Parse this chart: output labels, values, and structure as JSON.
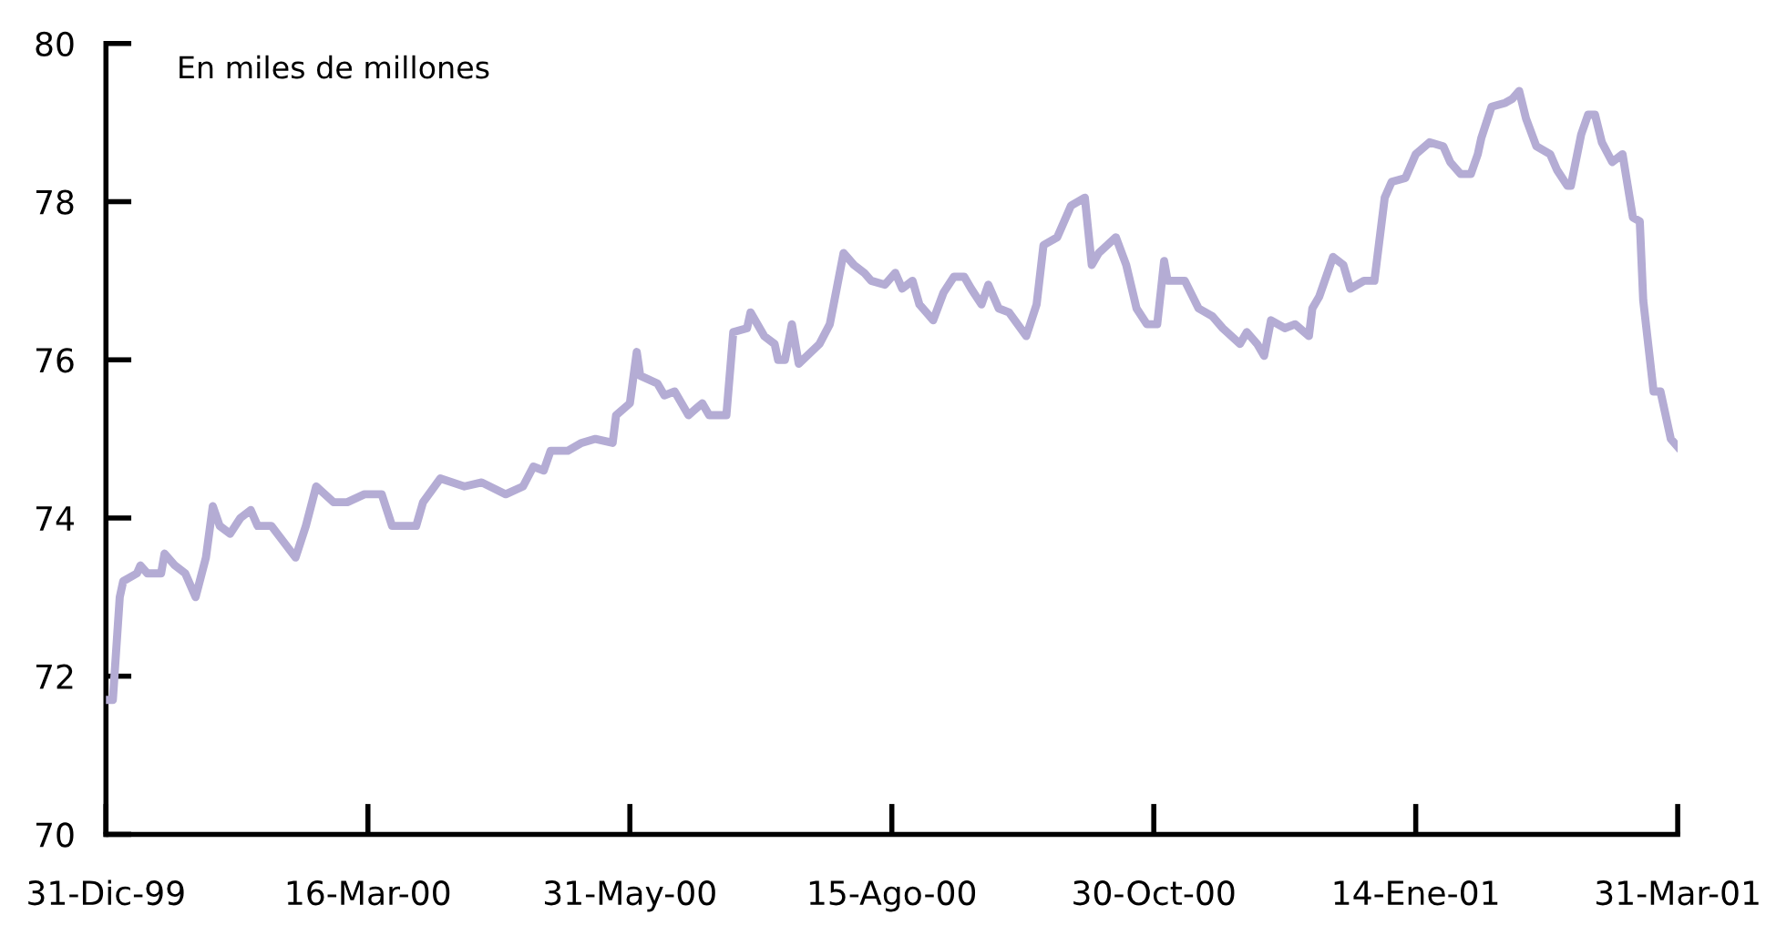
{
  "chart_data": {
    "type": "line",
    "annotations": [
      "En miles de millones"
    ],
    "xlim": [
      "1999-12-31",
      "2001-03-31"
    ],
    "xticks": [
      {
        "value": "1999-12-31",
        "label": "31-Dic-99"
      },
      {
        "value": "2000-03-16",
        "label": "16-Mar-00"
      },
      {
        "value": "2000-05-31",
        "label": "31-May-00"
      },
      {
        "value": "2000-08-15",
        "label": "15-Ago-00"
      },
      {
        "value": "2000-10-30",
        "label": "30-Oct-00"
      },
      {
        "value": "2001-01-14",
        "label": "14-Ene-01"
      },
      {
        "value": "2001-03-31",
        "label": "31-Mar-01"
      }
    ],
    "ylim": [
      70,
      80
    ],
    "yticks": [
      70,
      72,
      74,
      76,
      78,
      80
    ],
    "grid": false,
    "legend": false,
    "marker": "none",
    "line_style": "solid",
    "series": [
      {
        "color": "#b4acd4",
        "x": [
          "1999-12-31",
          "2000-01-02",
          "2000-01-04",
          "2000-01-05",
          "2000-01-09",
          "2000-01-10",
          "2000-01-12",
          "2000-01-16",
          "2000-01-17",
          "2000-01-20",
          "2000-01-23",
          "2000-01-26",
          "2000-01-29",
          "2000-01-31",
          "2000-02-02",
          "2000-02-05",
          "2000-02-08",
          "2000-02-11",
          "2000-02-13",
          "2000-02-17",
          "2000-02-24",
          "2000-02-27",
          "2000-03-01",
          "2000-03-06",
          "2000-03-10",
          "2000-03-15",
          "2000-03-20",
          "2000-03-23",
          "2000-03-30",
          "2000-04-01",
          "2000-04-06",
          "2000-04-13",
          "2000-04-18",
          "2000-04-25",
          "2000-04-30",
          "2000-05-03",
          "2000-05-06",
          "2000-05-08",
          "2000-05-13",
          "2000-05-17",
          "2000-05-21",
          "2000-05-26",
          "2000-05-27",
          "2000-05-31",
          "2000-06-02",
          "2000-06-03",
          "2000-06-08",
          "2000-06-10",
          "2000-06-13",
          "2000-06-17",
          "2000-06-21",
          "2000-06-23",
          "2000-06-28",
          "2000-06-30",
          "2000-07-04",
          "2000-07-05",
          "2000-07-09",
          "2000-07-12",
          "2000-07-13",
          "2000-07-15",
          "2000-07-17",
          "2000-07-19",
          "2000-07-25",
          "2000-07-28",
          "2000-07-30",
          "2000-08-01",
          "2000-08-04",
          "2000-08-07",
          "2000-08-09",
          "2000-08-13",
          "2000-08-16",
          "2000-08-18",
          "2000-08-21",
          "2000-08-23",
          "2000-08-27",
          "2000-08-30",
          "2000-09-02",
          "2000-09-05",
          "2000-09-07",
          "2000-09-10",
          "2000-09-12",
          "2000-09-15",
          "2000-09-18",
          "2000-09-23",
          "2000-09-26",
          "2000-09-28",
          "2000-10-02",
          "2000-10-06",
          "2000-10-10",
          "2000-10-12",
          "2000-10-14",
          "2000-10-19",
          "2000-10-22",
          "2000-10-25",
          "2000-10-28",
          "2000-10-31",
          "2000-11-02",
          "2000-11-03",
          "2000-11-08",
          "2000-11-12",
          "2000-11-16",
          "2000-11-19",
          "2000-11-24",
          "2000-11-26",
          "2000-11-29",
          "2000-12-01",
          "2000-12-03",
          "2000-12-07",
          "2000-12-10",
          "2000-12-14",
          "2000-12-15",
          "2000-12-17",
          "2000-12-21",
          "2000-12-24",
          "2000-12-26",
          "2000-12-30",
          "2001-01-02",
          "2001-01-05",
          "2001-01-07",
          "2001-01-11",
          "2001-01-14",
          "2001-01-18",
          "2001-01-22",
          "2001-01-24",
          "2001-01-27",
          "2001-01-30",
          "2001-02-01",
          "2001-02-02",
          "2001-02-05",
          "2001-02-09",
          "2001-02-11",
          "2001-02-13",
          "2001-02-15",
          "2001-02-18",
          "2001-02-22",
          "2001-02-24",
          "2001-02-27",
          "2001-02-28",
          "2001-03-03",
          "2001-03-05",
          "2001-03-07",
          "2001-03-09",
          "2001-03-12",
          "2001-03-15",
          "2001-03-18",
          "2001-03-20",
          "2001-03-21",
          "2001-03-24",
          "2001-03-26",
          "2001-03-29",
          "2001-03-31"
        ],
        "values": [
          71.7,
          71.7,
          73.0,
          73.2,
          73.3,
          73.4,
          73.3,
          73.3,
          73.55,
          73.4,
          73.3,
          73.0,
          73.5,
          74.15,
          73.9,
          73.8,
          74.0,
          74.1,
          73.9,
          73.9,
          73.5,
          73.9,
          74.4,
          74.2,
          74.2,
          74.3,
          74.3,
          73.9,
          73.9,
          74.2,
          74.5,
          74.4,
          74.45,
          74.3,
          74.4,
          74.65,
          74.6,
          74.85,
          74.85,
          74.95,
          75.0,
          74.95,
          75.3,
          75.45,
          76.1,
          75.8,
          75.7,
          75.55,
          75.6,
          75.3,
          75.45,
          75.3,
          75.3,
          76.35,
          76.4,
          76.6,
          76.3,
          76.2,
          76.0,
          76.0,
          76.45,
          75.95,
          76.2,
          76.45,
          76.9,
          77.35,
          77.2,
          77.1,
          77.0,
          76.95,
          77.1,
          76.9,
          77.0,
          76.7,
          76.5,
          76.85,
          77.05,
          77.05,
          76.9,
          76.7,
          76.95,
          76.65,
          76.6,
          76.3,
          76.7,
          77.45,
          77.55,
          77.95,
          78.05,
          77.2,
          77.35,
          77.55,
          77.2,
          76.65,
          76.45,
          76.45,
          77.25,
          77.0,
          77.0,
          76.65,
          76.55,
          76.4,
          76.2,
          76.35,
          76.2,
          76.05,
          76.5,
          76.4,
          76.45,
          76.3,
          76.65,
          76.8,
          77.3,
          77.2,
          76.9,
          77.0,
          77.0,
          78.05,
          78.25,
          78.3,
          78.6,
          78.75,
          78.7,
          78.5,
          78.35,
          78.35,
          78.6,
          78.8,
          79.2,
          79.25,
          79.3,
          79.4,
          79.05,
          78.7,
          78.6,
          78.4,
          78.2,
          78.2,
          78.85,
          79.1,
          79.1,
          78.75,
          78.5,
          78.6,
          77.8,
          77.75,
          76.75,
          75.6,
          75.6,
          75.0,
          74.9
        ]
      }
    ]
  }
}
